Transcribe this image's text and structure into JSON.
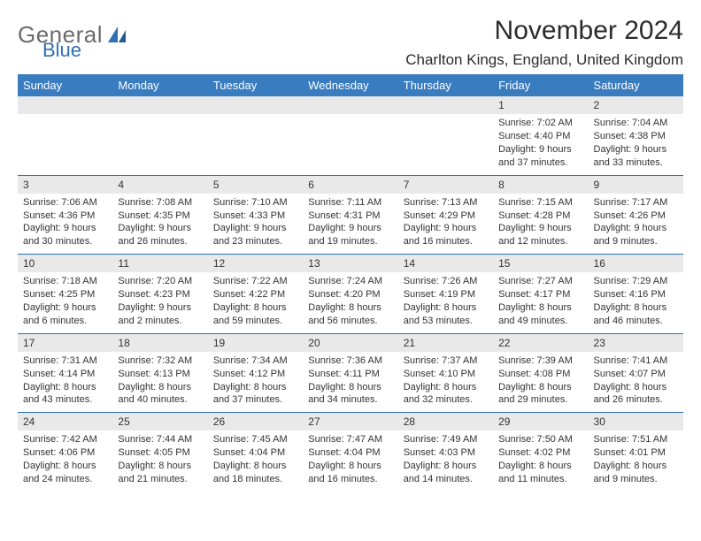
{
  "brand": {
    "general": "General",
    "blue": "Blue"
  },
  "title": "November 2024",
  "location": "Charlton Kings, England, United Kingdom",
  "colors": {
    "header_bg": "#3a7cc0",
    "header_text": "#ffffff",
    "rule": "#2e6fb5",
    "daynum_bg": "#e9e9e9",
    "body_text": "#333333",
    "logo_gray": "#6b6b6b",
    "logo_blue": "#2e6fb5"
  },
  "day_headers": [
    "Sunday",
    "Monday",
    "Tuesday",
    "Wednesday",
    "Thursday",
    "Friday",
    "Saturday"
  ],
  "weeks": [
    [
      null,
      null,
      null,
      null,
      null,
      {
        "n": "1",
        "sr": "Sunrise: 7:02 AM",
        "ss": "Sunset: 4:40 PM",
        "d1": "Daylight: 9 hours",
        "d2": "and 37 minutes."
      },
      {
        "n": "2",
        "sr": "Sunrise: 7:04 AM",
        "ss": "Sunset: 4:38 PM",
        "d1": "Daylight: 9 hours",
        "d2": "and 33 minutes."
      }
    ],
    [
      {
        "n": "3",
        "sr": "Sunrise: 7:06 AM",
        "ss": "Sunset: 4:36 PM",
        "d1": "Daylight: 9 hours",
        "d2": "and 30 minutes."
      },
      {
        "n": "4",
        "sr": "Sunrise: 7:08 AM",
        "ss": "Sunset: 4:35 PM",
        "d1": "Daylight: 9 hours",
        "d2": "and 26 minutes."
      },
      {
        "n": "5",
        "sr": "Sunrise: 7:10 AM",
        "ss": "Sunset: 4:33 PM",
        "d1": "Daylight: 9 hours",
        "d2": "and 23 minutes."
      },
      {
        "n": "6",
        "sr": "Sunrise: 7:11 AM",
        "ss": "Sunset: 4:31 PM",
        "d1": "Daylight: 9 hours",
        "d2": "and 19 minutes."
      },
      {
        "n": "7",
        "sr": "Sunrise: 7:13 AM",
        "ss": "Sunset: 4:29 PM",
        "d1": "Daylight: 9 hours",
        "d2": "and 16 minutes."
      },
      {
        "n": "8",
        "sr": "Sunrise: 7:15 AM",
        "ss": "Sunset: 4:28 PM",
        "d1": "Daylight: 9 hours",
        "d2": "and 12 minutes."
      },
      {
        "n": "9",
        "sr": "Sunrise: 7:17 AM",
        "ss": "Sunset: 4:26 PM",
        "d1": "Daylight: 9 hours",
        "d2": "and 9 minutes."
      }
    ],
    [
      {
        "n": "10",
        "sr": "Sunrise: 7:18 AM",
        "ss": "Sunset: 4:25 PM",
        "d1": "Daylight: 9 hours",
        "d2": "and 6 minutes."
      },
      {
        "n": "11",
        "sr": "Sunrise: 7:20 AM",
        "ss": "Sunset: 4:23 PM",
        "d1": "Daylight: 9 hours",
        "d2": "and 2 minutes."
      },
      {
        "n": "12",
        "sr": "Sunrise: 7:22 AM",
        "ss": "Sunset: 4:22 PM",
        "d1": "Daylight: 8 hours",
        "d2": "and 59 minutes."
      },
      {
        "n": "13",
        "sr": "Sunrise: 7:24 AM",
        "ss": "Sunset: 4:20 PM",
        "d1": "Daylight: 8 hours",
        "d2": "and 56 minutes."
      },
      {
        "n": "14",
        "sr": "Sunrise: 7:26 AM",
        "ss": "Sunset: 4:19 PM",
        "d1": "Daylight: 8 hours",
        "d2": "and 53 minutes."
      },
      {
        "n": "15",
        "sr": "Sunrise: 7:27 AM",
        "ss": "Sunset: 4:17 PM",
        "d1": "Daylight: 8 hours",
        "d2": "and 49 minutes."
      },
      {
        "n": "16",
        "sr": "Sunrise: 7:29 AM",
        "ss": "Sunset: 4:16 PM",
        "d1": "Daylight: 8 hours",
        "d2": "and 46 minutes."
      }
    ],
    [
      {
        "n": "17",
        "sr": "Sunrise: 7:31 AM",
        "ss": "Sunset: 4:14 PM",
        "d1": "Daylight: 8 hours",
        "d2": "and 43 minutes."
      },
      {
        "n": "18",
        "sr": "Sunrise: 7:32 AM",
        "ss": "Sunset: 4:13 PM",
        "d1": "Daylight: 8 hours",
        "d2": "and 40 minutes."
      },
      {
        "n": "19",
        "sr": "Sunrise: 7:34 AM",
        "ss": "Sunset: 4:12 PM",
        "d1": "Daylight: 8 hours",
        "d2": "and 37 minutes."
      },
      {
        "n": "20",
        "sr": "Sunrise: 7:36 AM",
        "ss": "Sunset: 4:11 PM",
        "d1": "Daylight: 8 hours",
        "d2": "and 34 minutes."
      },
      {
        "n": "21",
        "sr": "Sunrise: 7:37 AM",
        "ss": "Sunset: 4:10 PM",
        "d1": "Daylight: 8 hours",
        "d2": "and 32 minutes."
      },
      {
        "n": "22",
        "sr": "Sunrise: 7:39 AM",
        "ss": "Sunset: 4:08 PM",
        "d1": "Daylight: 8 hours",
        "d2": "and 29 minutes."
      },
      {
        "n": "23",
        "sr": "Sunrise: 7:41 AM",
        "ss": "Sunset: 4:07 PM",
        "d1": "Daylight: 8 hours",
        "d2": "and 26 minutes."
      }
    ],
    [
      {
        "n": "24",
        "sr": "Sunrise: 7:42 AM",
        "ss": "Sunset: 4:06 PM",
        "d1": "Daylight: 8 hours",
        "d2": "and 24 minutes."
      },
      {
        "n": "25",
        "sr": "Sunrise: 7:44 AM",
        "ss": "Sunset: 4:05 PM",
        "d1": "Daylight: 8 hours",
        "d2": "and 21 minutes."
      },
      {
        "n": "26",
        "sr": "Sunrise: 7:45 AM",
        "ss": "Sunset: 4:04 PM",
        "d1": "Daylight: 8 hours",
        "d2": "and 18 minutes."
      },
      {
        "n": "27",
        "sr": "Sunrise: 7:47 AM",
        "ss": "Sunset: 4:04 PM",
        "d1": "Daylight: 8 hours",
        "d2": "and 16 minutes."
      },
      {
        "n": "28",
        "sr": "Sunrise: 7:49 AM",
        "ss": "Sunset: 4:03 PM",
        "d1": "Daylight: 8 hours",
        "d2": "and 14 minutes."
      },
      {
        "n": "29",
        "sr": "Sunrise: 7:50 AM",
        "ss": "Sunset: 4:02 PM",
        "d1": "Daylight: 8 hours",
        "d2": "and 11 minutes."
      },
      {
        "n": "30",
        "sr": "Sunrise: 7:51 AM",
        "ss": "Sunset: 4:01 PM",
        "d1": "Daylight: 8 hours",
        "d2": "and 9 minutes."
      }
    ]
  ]
}
